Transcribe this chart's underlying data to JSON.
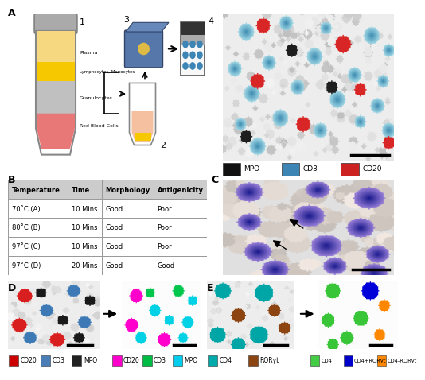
{
  "title_A": "A",
  "title_B": "B",
  "title_C": "C",
  "title_D": "D",
  "title_E": "E",
  "bg_color": "#ffffff",
  "tube_layer_colors": [
    "#f5e0b0",
    "#f5c800",
    "#c8c8c8",
    "#e87878"
  ],
  "tube_layer_labels": [
    "Plasma",
    "Lymphocytes, Monocytes",
    "Granulocytes",
    "Red Blood Cells"
  ],
  "table_headers": [
    "Temperature",
    "Time",
    "Morphology",
    "Antigenicity"
  ],
  "table_rows": [
    [
      "70˚C (A)",
      "10 Mins",
      "Good",
      "Poor"
    ],
    [
      "80˚C (B)",
      "10 Mins",
      "Good",
      "Poor"
    ],
    [
      "97˚C (C)",
      "10 Mins",
      "Good",
      "Poor"
    ],
    [
      "97˚C (D)",
      "20 Mins",
      "Good",
      "Good"
    ]
  ],
  "legend_D_left": [
    {
      "label": "CD20",
      "color": "#cc0000"
    },
    {
      "label": "CD3",
      "color": "#4a7db5"
    },
    {
      "label": "MPO",
      "color": "#222222"
    }
  ],
  "legend_D_right": [
    {
      "label": "CD20",
      "color": "#ff00cc"
    },
    {
      "label": "CD3",
      "color": "#00bb44"
    },
    {
      "label": "MPO",
      "color": "#00ccee"
    }
  ],
  "legend_E_left": [
    {
      "label": "CD4",
      "color": "#00aaaa"
    },
    {
      "label": "RORγt",
      "color": "#8B4513"
    }
  ],
  "legend_E_right": [
    {
      "label": "CD4",
      "color": "#44cc44"
    },
    {
      "label": "CD4+RORγt",
      "color": "#0000cc"
    },
    {
      "label": "CD4-RORγt",
      "color": "#ff8800"
    }
  ],
  "legend_A_items": [
    {
      "label": "MPO",
      "color": "#111111"
    },
    {
      "label": "CD3",
      "color": "#3d85b5"
    },
    {
      "label": "CD20",
      "color": "#cc2222"
    }
  ],
  "table_header_bg": "#cccccc",
  "table_border": "#999999"
}
